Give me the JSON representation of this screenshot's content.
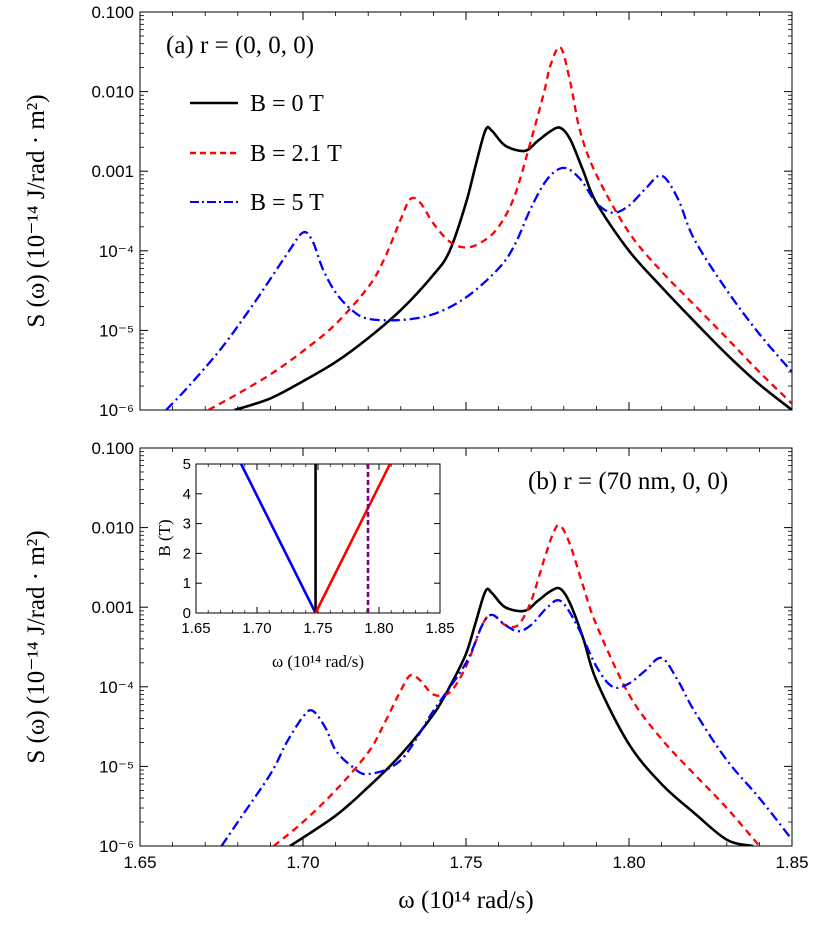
{
  "chart_data": {
    "type": "line",
    "figure": {
      "y_axis_label": "S (ω) (10⁻¹⁴ J/rad · m²)",
      "x_axis_label": "ω (10¹⁴ rad/s)",
      "x_ticks": [
        "1.65",
        "1.70",
        "1.75",
        "1.80",
        "1.85"
      ],
      "y_ticks": [
        "10⁻⁶",
        "10⁻⁵",
        "10⁻⁴",
        "0.001",
        "0.010",
        "0.100"
      ],
      "y_tick_values": [
        1e-06,
        1e-05,
        0.0001,
        0.001,
        0.01,
        0.1
      ]
    },
    "legend": [
      {
        "label": "B = 0 T",
        "color": "#000000",
        "style": "solid"
      },
      {
        "label": "B = 2.1 T",
        "color": "#ff0000",
        "style": "dashed"
      },
      {
        "label": "B = 5 T",
        "color": "#0000ff",
        "style": "dash-dot"
      }
    ],
    "panels": [
      {
        "label": "(a) r = (0, 0, 0)",
        "xlim": [
          1.65,
          1.85
        ],
        "ylim": [
          1e-06,
          0.1
        ],
        "yscale": "log",
        "series": [
          {
            "name": "B = 0 T",
            "color": "#000000",
            "style": "solid",
            "x": [
              1.679,
              1.69,
              1.7,
              1.71,
              1.72,
              1.73,
              1.74,
              1.745,
              1.75,
              1.753,
              1.756,
              1.758,
              1.762,
              1.768,
              1.772,
              1.776,
              1.779,
              1.782,
              1.786,
              1.79,
              1.8,
              1.81,
              1.82,
              1.83,
              1.84,
              1.85
            ],
            "y": [
              1e-06,
              1.4e-06,
              2.3e-06,
              4e-06,
              8e-06,
              1.8e-05,
              5e-05,
              0.0001,
              0.0004,
              0.0012,
              0.0033,
              0.0032,
              0.0021,
              0.0018,
              0.0024,
              0.0032,
              0.0035,
              0.0025,
              0.001,
              0.0004,
              0.0001,
              3.5e-05,
              1.3e-05,
              5e-06,
              2.1e-06,
              1e-06
            ]
          },
          {
            "name": "B = 2.1 T",
            "color": "#ff0000",
            "style": "dashed",
            "x": [
              1.671,
              1.68,
              1.69,
              1.7,
              1.71,
              1.72,
              1.725,
              1.73,
              1.733,
              1.736,
              1.74,
              1.745,
              1.75,
              1.755,
              1.76,
              1.765,
              1.77,
              1.774,
              1.776,
              1.779,
              1.782,
              1.785,
              1.79,
              1.8,
              1.81,
              1.82,
              1.83,
              1.84,
              1.85
            ],
            "y": [
              1e-06,
              1.6e-06,
              2.8e-06,
              5.5e-06,
              1.2e-05,
              3.5e-05,
              8e-05,
              0.00025,
              0.00045,
              0.0004,
              0.00022,
              0.00013,
              0.00011,
              0.00013,
              0.0002,
              0.0005,
              0.0025,
              0.01,
              0.022,
              0.036,
              0.013,
              0.0032,
              0.0009,
              0.00017,
              5.5e-05,
              2.1e-05,
              8e-06,
              3e-06,
              1.2e-06
            ]
          },
          {
            "name": "B = 5 T",
            "color": "#0000ff",
            "style": "dash-dot",
            "x": [
              1.658,
              1.665,
              1.675,
              1.685,
              1.695,
              1.7,
              1.703,
              1.706,
              1.71,
              1.715,
              1.72,
              1.73,
              1.74,
              1.75,
              1.76,
              1.765,
              1.77,
              1.775,
              1.78,
              1.785,
              1.79,
              1.795,
              1.8,
              1.805,
              1.81,
              1.815,
              1.82,
              1.83,
              1.84,
              1.85
            ],
            "y": [
              1e-06,
              2e-06,
              6e-06,
              2.2e-05,
              9e-05,
              0.00017,
              0.00013,
              6e-05,
              3e-05,
              1.8e-05,
              1.4e-05,
              1.35e-05,
              1.6e-05,
              2.6e-05,
              6e-05,
              0.00012,
              0.00035,
              0.0008,
              0.0011,
              0.0008,
              0.0004,
              0.0003,
              0.00037,
              0.0006,
              0.00088,
              0.00045,
              0.00014,
              3.2e-05,
              9e-06,
              3e-06
            ]
          }
        ]
      },
      {
        "label": "(b) r = (70 nm, 0, 0)",
        "xlim": [
          1.65,
          1.85
        ],
        "ylim": [
          1e-06,
          0.1
        ],
        "yscale": "log",
        "series": [
          {
            "name": "B = 0 T",
            "color": "#000000",
            "style": "solid",
            "x": [
              1.696,
              1.71,
              1.72,
              1.73,
              1.74,
              1.745,
              1.75,
              1.753,
              1.756,
              1.758,
              1.762,
              1.768,
              1.772,
              1.776,
              1.779,
              1.782,
              1.786,
              1.79,
              1.8,
              1.81,
              1.82,
              1.83,
              1.838
            ],
            "y": [
              1e-06,
              2.4e-06,
              5.5e-06,
              1.4e-05,
              4.5e-05,
              0.0001,
              0.00026,
              0.00065,
              0.0016,
              0.0015,
              0.001,
              0.0009,
              0.0012,
              0.0016,
              0.0017,
              0.0011,
              0.0004,
              0.00012,
              1.9e-05,
              6e-06,
              2.6e-06,
              1.2e-06,
              1e-06
            ]
          },
          {
            "name": "B = 2.1 T",
            "color": "#ff0000",
            "style": "dashed",
            "x": [
              1.691,
              1.7,
              1.71,
              1.72,
              1.725,
              1.73,
              1.733,
              1.736,
              1.74,
              1.745,
              1.75,
              1.755,
              1.758,
              1.762,
              1.766,
              1.77,
              1.774,
              1.777,
              1.779,
              1.782,
              1.786,
              1.79,
              1.8,
              1.81,
              1.82,
              1.83,
              1.84
            ],
            "y": [
              1e-06,
              2e-06,
              5e-06,
              1.5e-05,
              3.5e-05,
              9e-05,
              0.00014,
              0.00012,
              8e-05,
              8.5e-05,
              0.00018,
              0.0006,
              0.0008,
              0.0006,
              0.0006,
              0.0012,
              0.004,
              0.009,
              0.0105,
              0.006,
              0.0018,
              0.0006,
              8e-05,
              2.2e-05,
              8e-06,
              3e-06,
              1e-06
            ]
          },
          {
            "name": "B = 5 T",
            "color": "#0000ff",
            "style": "dash-dot",
            "x": [
              1.675,
              1.68,
              1.69,
              1.695,
              1.7,
              1.703,
              1.707,
              1.71,
              1.715,
              1.72,
              1.73,
              1.74,
              1.75,
              1.755,
              1.758,
              1.762,
              1.766,
              1.77,
              1.775,
              1.779,
              1.784,
              1.79,
              1.795,
              1.8,
              1.805,
              1.81,
              1.815,
              1.82,
              1.83,
              1.84,
              1.85
            ],
            "y": [
              1e-06,
              2e-06,
              8e-06,
              2e-05,
              4.2e-05,
              5e-05,
              3e-05,
              1.6e-05,
              1e-05,
              8e-06,
              1.2e-05,
              5e-05,
              0.0002,
              0.0006,
              0.0008,
              0.0006,
              0.0005,
              0.0006,
              0.001,
              0.0012,
              0.0006,
              0.00018,
              0.0001,
              0.00011,
              0.00016,
              0.00023,
              0.00012,
              5e-05,
              1.2e-05,
              4e-06,
              1.2e-06
            ]
          }
        ]
      }
    ],
    "inset": {
      "xlabel": "ω (10¹⁴ rad/s)",
      "ylabel": "B (T)",
      "xlim": [
        1.65,
        1.85
      ],
      "ylim": [
        0,
        5
      ],
      "x_ticks": [
        "1.65",
        "1.70",
        "1.75",
        "1.80",
        "1.85"
      ],
      "y_ticks": [
        "0",
        "1",
        "2",
        "3",
        "4",
        "5"
      ],
      "lines": [
        {
          "name": "blue",
          "color": "#0000ff",
          "style": "solid",
          "x": [
            1.748,
            1.687
          ],
          "y": [
            0,
            5
          ]
        },
        {
          "name": "black",
          "color": "#000000",
          "style": "solid",
          "x": [
            1.748,
            1.748
          ],
          "y": [
            0,
            5
          ]
        },
        {
          "name": "red",
          "color": "#ff0000",
          "style": "solid",
          "x": [
            1.748,
            1.809
          ],
          "y": [
            0,
            5
          ]
        },
        {
          "name": "purple",
          "color": "#800080",
          "style": "dashed",
          "x": [
            1.791,
            1.791
          ],
          "y": [
            0,
            5
          ]
        }
      ]
    }
  }
}
